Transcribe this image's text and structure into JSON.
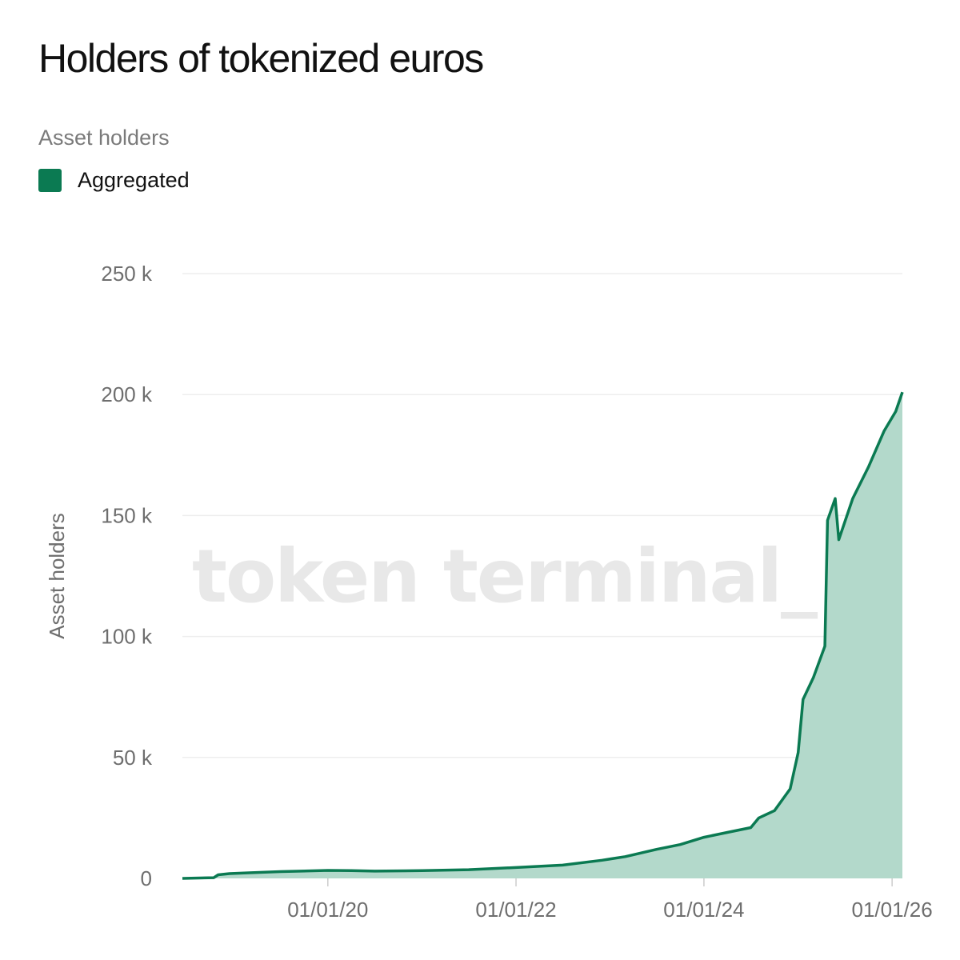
{
  "watermark": "token terminal_",
  "colors": {
    "line": "#0b7a52",
    "area": "#b3d9cb",
    "swatch": "#0b7a52",
    "grid": "#eeeeee"
  },
  "chart_data": {
    "type": "area",
    "title": "Holders of tokenized euros",
    "subtitle": "Asset holders",
    "ylabel": "Asset holders",
    "xlabel": "",
    "legend_position": "top-left",
    "grid": true,
    "xlim": [
      "2018-06-15",
      "2026-02-10"
    ],
    "ylim": [
      0,
      250000
    ],
    "yticks": [
      0,
      50000,
      100000,
      150000,
      200000,
      250000
    ],
    "ytick_labels": [
      "0",
      "50 k",
      "100 k",
      "150 k",
      "200 k",
      "250 k"
    ],
    "xticks": [
      "2020-01-01",
      "2022-01-01",
      "2024-01-01",
      "2026-01-01"
    ],
    "xtick_labels": [
      "01/01/20",
      "01/01/22",
      "01/01/24",
      "01/01/26"
    ],
    "series": [
      {
        "name": "Aggregated",
        "points": [
          [
            "2018-06-15",
            0
          ],
          [
            "2018-10-15",
            300
          ],
          [
            "2018-11-01",
            1500
          ],
          [
            "2018-12-15",
            2000
          ],
          [
            "2019-03-01",
            2300
          ],
          [
            "2019-07-01",
            2800
          ],
          [
            "2020-01-01",
            3300
          ],
          [
            "2020-04-01",
            3200
          ],
          [
            "2020-07-01",
            3000
          ],
          [
            "2021-01-01",
            3200
          ],
          [
            "2021-07-01",
            3600
          ],
          [
            "2022-01-01",
            4500
          ],
          [
            "2022-07-01",
            5500
          ],
          [
            "2022-12-01",
            7500
          ],
          [
            "2023-03-01",
            9000
          ],
          [
            "2023-07-01",
            12000
          ],
          [
            "2023-10-01",
            14000
          ],
          [
            "2024-01-01",
            17000
          ],
          [
            "2024-04-01",
            19000
          ],
          [
            "2024-07-01",
            21000
          ],
          [
            "2024-08-01",
            25000
          ],
          [
            "2024-10-01",
            28000
          ],
          [
            "2024-12-01",
            37000
          ],
          [
            "2025-01-01",
            52000
          ],
          [
            "2025-01-20",
            74000
          ],
          [
            "2025-03-01",
            83000
          ],
          [
            "2025-04-15",
            96000
          ],
          [
            "2025-04-25",
            148000
          ],
          [
            "2025-05-25",
            157000
          ],
          [
            "2025-06-08",
            140000
          ],
          [
            "2025-08-01",
            157000
          ],
          [
            "2025-10-01",
            170000
          ],
          [
            "2025-12-01",
            185000
          ],
          [
            "2026-01-15",
            193000
          ],
          [
            "2026-02-10",
            201000
          ]
        ]
      }
    ]
  }
}
